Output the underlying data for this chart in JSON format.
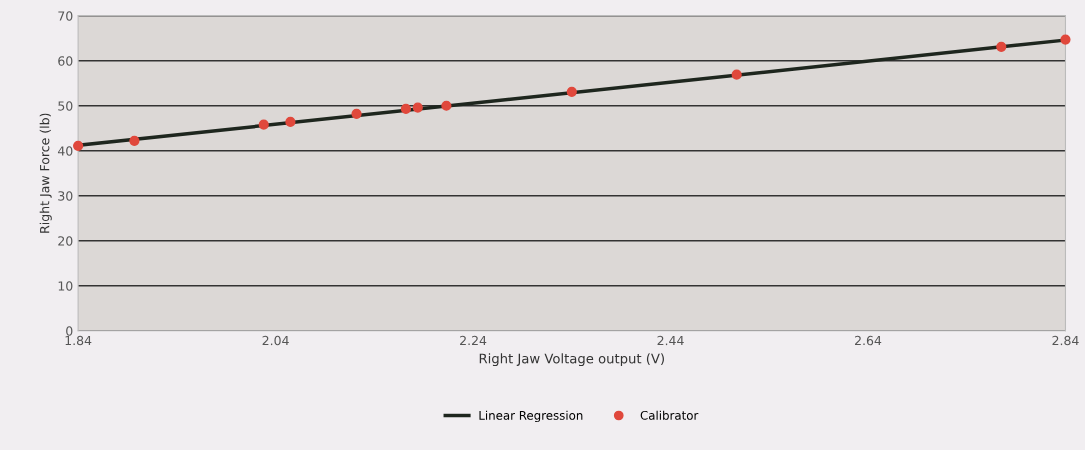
{
  "chart_data": {
    "type": "scatter",
    "xlabel": "Right Jaw Voltage output (V)",
    "ylabel": "Right Jaw Force (lb)",
    "xlim": [
      1.84,
      2.84
    ],
    "xticks": [
      1.84,
      2.04,
      2.24,
      2.44,
      2.64,
      2.84
    ],
    "ylim": [
      0,
      70
    ],
    "yticks": [
      0,
      10,
      20,
      30,
      40,
      50,
      60,
      70
    ],
    "grid": "y",
    "legend": "bottom",
    "series": [
      {
        "name": "Linear Regression",
        "type": "line",
        "color": "#1e261e",
        "marker": "none",
        "line_style": "solid",
        "x": [
          1.84,
          2.84
        ],
        "values": [
          41.2,
          64.6
        ]
      },
      {
        "name": "Calibrator",
        "color": "#e0483c",
        "marker": "circle",
        "x": [
          1.84,
          1.897,
          2.028,
          2.055,
          2.122,
          2.172,
          2.184,
          2.213,
          2.34,
          2.507,
          2.775,
          2.84
        ],
        "values": [
          41.1,
          42.2,
          45.8,
          46.4,
          48.2,
          49.3,
          49.6,
          50.0,
          53.1,
          56.9,
          63.1,
          64.7
        ]
      }
    ]
  }
}
